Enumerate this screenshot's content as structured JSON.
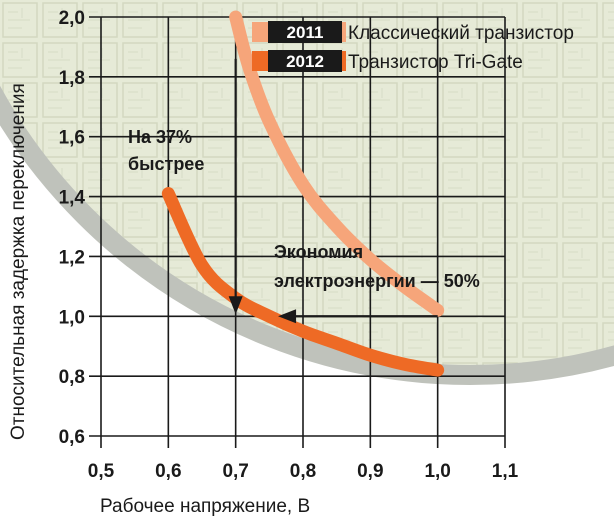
{
  "colors": {
    "classic": "#f6a57a",
    "trigate": "#ee6a25",
    "grid": "#1a1a1a",
    "wafer_fill": "#e6ead7",
    "wafer_edge": "#bfc2bb",
    "legend_box": "#1a1a1a"
  },
  "legend": [
    {
      "year": "2011",
      "label": "Классический транзистор",
      "color": "#f6a57a"
    },
    {
      "year": "2012",
      "label": "Транзистор Tri-Gate",
      "color": "#ee6a25"
    }
  ],
  "annotations": {
    "faster_line1": "На 37%",
    "faster_line2": "быстрее",
    "energy_line1": "Экономия",
    "energy_line2": "электроэнергии — 50%"
  },
  "chart_data": {
    "type": "line",
    "title": "",
    "xlabel": "Рабочее напряжение, В",
    "ylabel": "Относительная задержка переключения",
    "xlim": [
      0.5,
      1.1
    ],
    "ylim": [
      0.6,
      2.0
    ],
    "x_ticks": [
      "0,5",
      "0,6",
      "0,7",
      "0,8",
      "0,9",
      "1,0",
      "1,1"
    ],
    "y_ticks": [
      "0,6",
      "0,8",
      "1,0",
      "1,2",
      "1,4",
      "1,6",
      "1,8",
      "2,0"
    ],
    "grid": true,
    "series": [
      {
        "name": "Классический транзистор",
        "x": [
          0.7,
          0.72,
          0.75,
          0.8,
          0.85,
          0.9,
          0.95,
          1.0
        ],
        "y": [
          2.0,
          1.83,
          1.65,
          1.44,
          1.3,
          1.19,
          1.1,
          1.02
        ]
      },
      {
        "name": "Транзистор Tri-Gate",
        "x": [
          0.6,
          0.65,
          0.7,
          0.75,
          0.8,
          0.85,
          0.9,
          0.95,
          1.0
        ],
        "y": [
          1.41,
          1.17,
          1.06,
          1.0,
          0.95,
          0.91,
          0.87,
          0.84,
          0.82
        ]
      }
    ]
  }
}
